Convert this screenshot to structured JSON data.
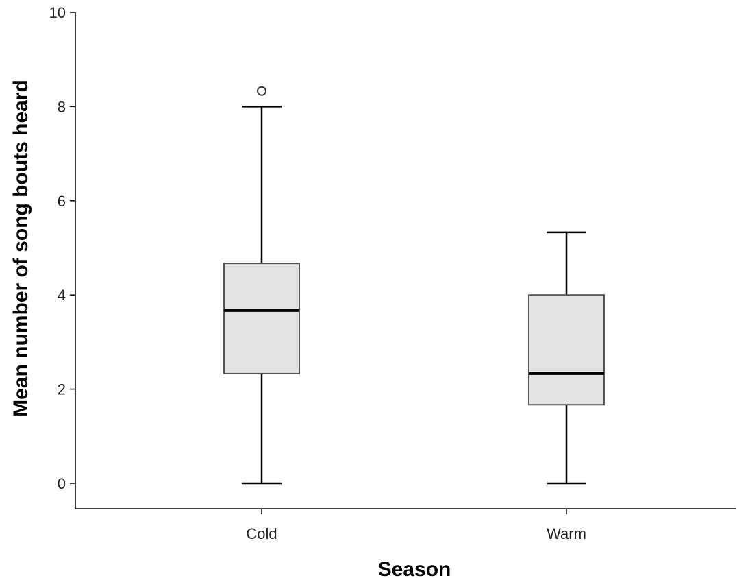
{
  "chart_data": {
    "type": "boxplot",
    "title": "",
    "xlabel": "Season",
    "ylabel": "Mean number of song bouts heard",
    "ylim": [
      0,
      10
    ],
    "yticks": [
      0,
      2,
      4,
      6,
      8,
      10
    ],
    "grid": false,
    "categories": [
      "Cold",
      "Warm"
    ],
    "boxes": [
      {
        "category": "Cold",
        "min": 0,
        "q1": 2.33,
        "median": 3.67,
        "q3": 4.67,
        "max": 8.0,
        "outliers": [
          8.33
        ]
      },
      {
        "category": "Warm",
        "min": 0,
        "q1": 1.67,
        "median": 2.33,
        "q3": 4.0,
        "max": 5.33,
        "outliers": []
      }
    ],
    "colors": {
      "box_fill": "#e3e3e3",
      "line": "#000000",
      "box_border": "#555555"
    }
  }
}
